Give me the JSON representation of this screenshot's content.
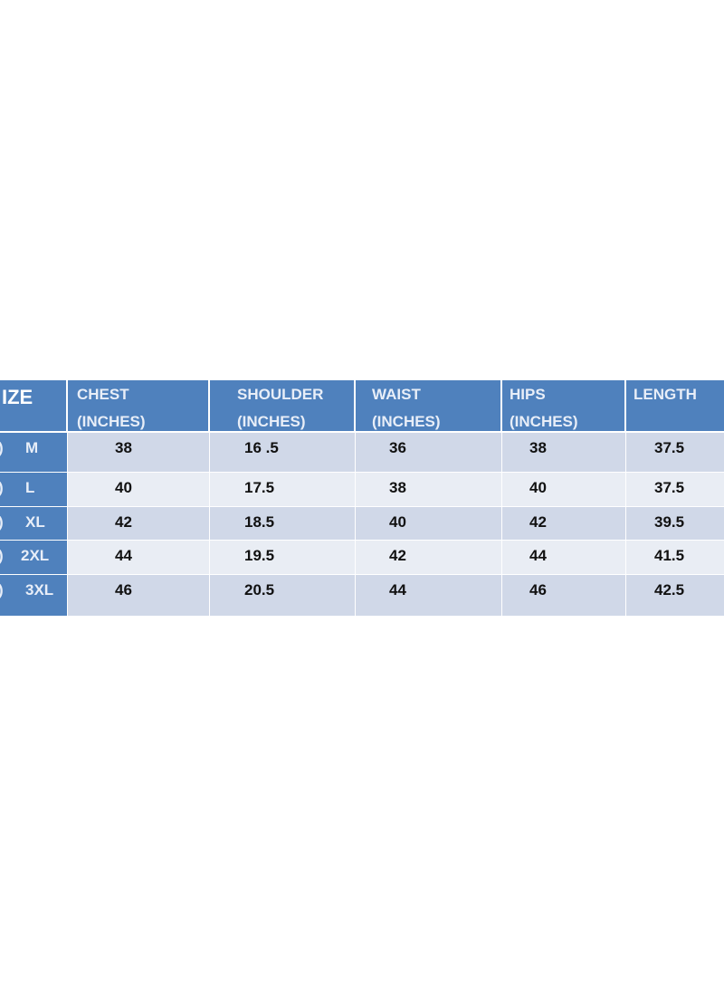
{
  "table": {
    "headers": [
      {
        "line1": "IZE",
        "line2": ""
      },
      {
        "line1": "CHEST",
        "line2": "(INCHES)"
      },
      {
        "line1": "SHOULDER",
        "line2": "(INCHES)"
      },
      {
        "line1": "WAIST",
        "line2": "(INCHES)"
      },
      {
        "line1": "HIPS",
        "line2": "(INCHES)"
      },
      {
        "line1": "LENGTH",
        "line2": ""
      }
    ],
    "rows": [
      {
        "prefix": ")",
        "size": "M",
        "chest": "38",
        "shoulder": "16 .5",
        "waist": "36",
        "hips": "38",
        "length": "37.5"
      },
      {
        "prefix": ")",
        "size": "L",
        "chest": "40",
        "shoulder": "17.5",
        "waist": "38",
        "hips": "40",
        "length": "37.5"
      },
      {
        "prefix": ")",
        "size": "XL",
        "chest": "42",
        "shoulder": "18.5",
        "waist": "40",
        "hips": "42",
        "length": "39.5"
      },
      {
        "prefix": ")",
        "size": "2XL",
        "chest": "44",
        "shoulder": "19.5",
        "waist": "42",
        "hips": "44",
        "length": "41.5"
      },
      {
        "prefix": ")",
        "size": "3XL",
        "chest": "46",
        "shoulder": "20.5",
        "waist": "44",
        "hips": "46",
        "length": "42.5"
      }
    ]
  },
  "colors": {
    "header": "#4f81bd",
    "row_dark": "#d0d8e8",
    "row_light": "#e9edf4"
  }
}
